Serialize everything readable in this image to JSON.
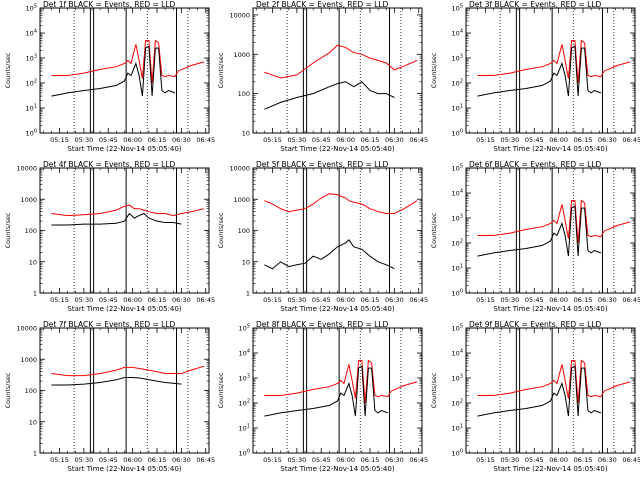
{
  "common": {
    "xlabel": "Start Time (22-Nov-14 05:05:40)",
    "ylabel": "Counts/sec",
    "xtick_labels": [
      "05:15",
      "05:30",
      "05:45",
      "06:00",
      "06:15",
      "06:30",
      "06:45"
    ],
    "xtick_minutes": [
      15,
      30,
      45,
      60,
      75,
      90,
      105
    ],
    "xlim_minutes": [
      3,
      107
    ],
    "solid_vlines_minutes": [
      34,
      36,
      56,
      87
    ],
    "dotted_vlines_minutes": [
      24,
      69,
      94
    ],
    "series": [
      {
        "name": "Events",
        "color": "#000000"
      },
      {
        "name": "LLD",
        "color": "#ff0000"
      }
    ]
  },
  "chart_data": [
    {
      "type": "line",
      "title": "Det 1f BLACK = Events, RED = LLD",
      "scale": "log",
      "yticks": [
        "10^0",
        "10^1",
        "10^2",
        "10^3",
        "10^4",
        "10^5"
      ],
      "ylim": [
        1,
        100000
      ],
      "x": [
        10,
        20,
        30,
        40,
        50,
        55,
        57,
        59,
        62,
        64,
        66,
        68,
        70,
        72,
        74,
        76,
        78,
        80,
        82,
        86,
        88,
        96,
        104
      ],
      "series": [
        {
          "name": "Events",
          "values": [
            30,
            40,
            50,
            60,
            80,
            120,
            250,
            200,
            600,
            200,
            30,
            2500,
            3000,
            30,
            2500,
            2500,
            50,
            40,
            50,
            40,
            null,
            null,
            null
          ]
        },
        {
          "name": "LLD",
          "values": [
            200,
            200,
            250,
            350,
            450,
            600,
            800,
            600,
            3500,
            800,
            150,
            5000,
            5000,
            100,
            5000,
            4000,
            200,
            180,
            200,
            180,
            300,
            500,
            700
          ]
        }
      ]
    },
    {
      "type": "line",
      "title": "Det 2f BLACK = Events, RED = LLD",
      "scale": "log",
      "yticks": [
        "10",
        "100",
        "1000",
        "10000"
      ],
      "ylim": [
        10,
        15000
      ],
      "x": [
        10,
        20,
        30,
        40,
        50,
        55,
        60,
        65,
        70,
        75,
        80,
        85,
        90,
        96,
        104
      ],
      "series": [
        {
          "name": "Events",
          "values": [
            40,
            60,
            80,
            100,
            150,
            180,
            200,
            150,
            200,
            120,
            100,
            100,
            80,
            null,
            null
          ]
        },
        {
          "name": "LLD",
          "values": [
            350,
            250,
            300,
            600,
            1100,
            1700,
            1500,
            1100,
            1000,
            800,
            700,
            600,
            400,
            500,
            700
          ]
        }
      ]
    },
    {
      "type": "line",
      "title": "Det 3f BLACK = Events, RED = LLD",
      "scale": "log",
      "yticks": [
        "10^0",
        "10^1",
        "10^2",
        "10^3",
        "10^4",
        "10^5"
      ],
      "ylim": [
        1,
        100000
      ],
      "x": [
        10,
        20,
        30,
        40,
        50,
        55,
        57,
        59,
        62,
        64,
        66,
        68,
        70,
        72,
        74,
        76,
        78,
        80,
        82,
        86,
        88,
        96,
        104
      ],
      "series": [
        {
          "name": "Events",
          "values": [
            30,
            40,
            50,
            60,
            80,
            120,
            250,
            200,
            600,
            200,
            30,
            2500,
            3000,
            30,
            2500,
            2500,
            50,
            40,
            50,
            40,
            null,
            null,
            null
          ]
        },
        {
          "name": "LLD",
          "values": [
            200,
            200,
            250,
            350,
            450,
            600,
            800,
            600,
            3500,
            800,
            150,
            5000,
            5000,
            100,
            5000,
            4000,
            200,
            180,
            200,
            180,
            300,
            500,
            700
          ]
        }
      ]
    },
    {
      "type": "line",
      "title": "Det 4f BLACK = Events, RED = LLD",
      "scale": "log",
      "yticks": [
        "1",
        "10",
        "100",
        "1000",
        "10000"
      ],
      "ylim": [
        1,
        10000
      ],
      "x": [
        10,
        20,
        30,
        40,
        50,
        55,
        58,
        61,
        64,
        67,
        70,
        75,
        80,
        85,
        90,
        96,
        104
      ],
      "series": [
        {
          "name": "Events",
          "values": [
            150,
            150,
            160,
            160,
            170,
            200,
            350,
            250,
            300,
            350,
            250,
            200,
            180,
            180,
            160,
            null,
            null
          ]
        },
        {
          "name": "LLD",
          "values": [
            350,
            300,
            320,
            350,
            450,
            600,
            650,
            500,
            500,
            450,
            400,
            350,
            350,
            300,
            350,
            400,
            500
          ]
        }
      ]
    },
    {
      "type": "line",
      "title": "Det 5f BLACK = Events, RED = LLD",
      "scale": "log",
      "yticks": [
        "1",
        "10",
        "100",
        "1000",
        "10000"
      ],
      "ylim": [
        1,
        10000
      ],
      "x": [
        10,
        15,
        20,
        25,
        30,
        35,
        40,
        45,
        50,
        55,
        60,
        62,
        65,
        70,
        75,
        80,
        85,
        90,
        96,
        104
      ],
      "series": [
        {
          "name": "Events",
          "values": [
            8,
            6,
            10,
            7,
            8,
            9,
            15,
            12,
            18,
            30,
            40,
            50,
            30,
            25,
            15,
            10,
            8,
            6,
            null,
            null
          ]
        },
        {
          "name": "LLD",
          "values": [
            900,
            700,
            500,
            400,
            450,
            500,
            700,
            1100,
            1500,
            1400,
            1100,
            900,
            800,
            700,
            500,
            400,
            350,
            350,
            500,
            900
          ]
        }
      ]
    },
    {
      "type": "line",
      "title": "Det 6f BLACK = Events, RED = LLD",
      "scale": "log",
      "yticks": [
        "10^0",
        "10^1",
        "10^2",
        "10^3",
        "10^4",
        "10^5"
      ],
      "ylim": [
        1,
        100000
      ],
      "x": [
        10,
        20,
        30,
        40,
        50,
        55,
        57,
        59,
        62,
        64,
        66,
        68,
        70,
        72,
        74,
        76,
        78,
        80,
        82,
        86,
        88,
        96,
        104
      ],
      "series": [
        {
          "name": "Events",
          "values": [
            30,
            40,
            50,
            60,
            80,
            120,
            250,
            200,
            600,
            200,
            30,
            2500,
            3000,
            30,
            2500,
            2500,
            50,
            40,
            50,
            40,
            null,
            null,
            null
          ]
        },
        {
          "name": "LLD",
          "values": [
            200,
            200,
            250,
            350,
            450,
            600,
            800,
            600,
            3500,
            800,
            150,
            5000,
            5000,
            100,
            5000,
            4000,
            200,
            180,
            200,
            180,
            300,
            500,
            700
          ]
        }
      ]
    },
    {
      "type": "line",
      "title": "Det 7f BLACK = Events, RED = LLD",
      "scale": "log",
      "yticks": [
        "1",
        "10",
        "100",
        "1000",
        "10000"
      ],
      "ylim": [
        1,
        10000
      ],
      "x": [
        10,
        20,
        30,
        40,
        50,
        55,
        60,
        65,
        70,
        75,
        80,
        85,
        90,
        96,
        104
      ],
      "series": [
        {
          "name": "Events",
          "values": [
            150,
            150,
            160,
            180,
            220,
            260,
            260,
            250,
            220,
            200,
            180,
            170,
            160,
            null,
            null
          ]
        },
        {
          "name": "LLD",
          "values": [
            350,
            300,
            300,
            350,
            450,
            550,
            550,
            500,
            450,
            400,
            350,
            350,
            350,
            450,
            600
          ]
        }
      ]
    },
    {
      "type": "line",
      "title": "Det 8f BLACK = Events, RED = LLD",
      "scale": "log",
      "yticks": [
        "10^0",
        "10^1",
        "10^2",
        "10^3",
        "10^4",
        "10^5"
      ],
      "ylim": [
        1,
        100000
      ],
      "x": [
        10,
        20,
        30,
        40,
        50,
        55,
        57,
        59,
        62,
        64,
        66,
        68,
        70,
        72,
        74,
        76,
        78,
        80,
        82,
        86,
        88,
        96,
        104
      ],
      "series": [
        {
          "name": "Events",
          "values": [
            30,
            40,
            50,
            60,
            80,
            120,
            250,
            200,
            600,
            200,
            30,
            2500,
            3000,
            30,
            2500,
            2500,
            50,
            40,
            50,
            40,
            null,
            null,
            null
          ]
        },
        {
          "name": "LLD",
          "values": [
            200,
            200,
            250,
            350,
            450,
            600,
            800,
            600,
            3500,
            800,
            150,
            5000,
            5000,
            100,
            5000,
            4000,
            200,
            180,
            200,
            180,
            300,
            500,
            700
          ]
        }
      ]
    },
    {
      "type": "line",
      "title": "Det 9f BLACK = Events, RED = LLD",
      "scale": "log",
      "yticks": [
        "10^0",
        "10^1",
        "10^2",
        "10^3",
        "10^4",
        "10^5"
      ],
      "ylim": [
        1,
        100000
      ],
      "x": [
        10,
        20,
        30,
        40,
        50,
        55,
        57,
        59,
        62,
        64,
        66,
        68,
        70,
        72,
        74,
        76,
        78,
        80,
        82,
        86,
        88,
        96,
        104
      ],
      "series": [
        {
          "name": "Events",
          "values": [
            30,
            40,
            50,
            60,
            80,
            120,
            250,
            200,
            600,
            200,
            30,
            2500,
            3000,
            30,
            2500,
            2500,
            50,
            40,
            50,
            40,
            null,
            null,
            null
          ]
        },
        {
          "name": "LLD",
          "values": [
            200,
            200,
            250,
            350,
            450,
            600,
            800,
            600,
            3500,
            800,
            150,
            5000,
            5000,
            100,
            5000,
            4000,
            200,
            180,
            200,
            180,
            300,
            500,
            700
          ]
        }
      ]
    }
  ]
}
